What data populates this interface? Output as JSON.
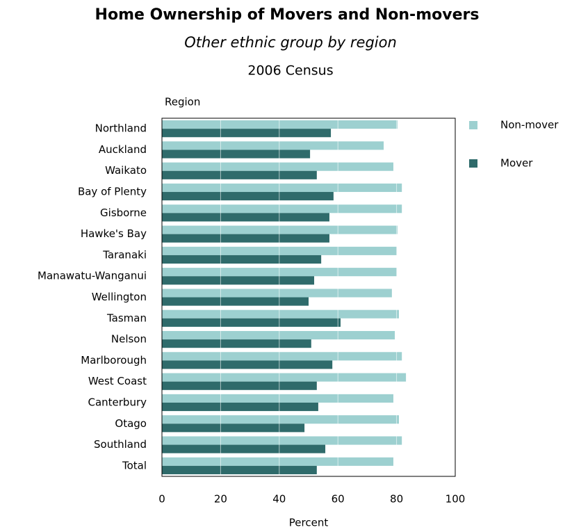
{
  "chart_data": {
    "type": "bar",
    "orientation": "horizontal",
    "title": "Home Ownership of Movers and Non-movers",
    "subtitle": "Other ethnic group by region",
    "note": "2006 Census",
    "y_label": "Region",
    "x_label": "Percent",
    "categories": [
      "Northland",
      "Auckland",
      "Waikato",
      "Bay of Plenty",
      "Gisborne",
      "Hawke's Bay",
      "Taranaki",
      "Manawatu-Wanganui",
      "Wellington",
      "Tasman",
      "Nelson",
      "Marlborough",
      "West Coast",
      "Canterbury",
      "Otago",
      "Southland",
      "Total"
    ],
    "series": [
      {
        "name": "Non-mover",
        "color": "#9dd0d0",
        "values": [
          80.3,
          75.6,
          78.9,
          81.8,
          81.8,
          80.3,
          80.1,
          80.1,
          78.4,
          80.8,
          79.4,
          81.8,
          83.2,
          78.9,
          80.8,
          81.8,
          78.9
        ]
      },
      {
        "name": "Mover",
        "color": "#2f6b6b",
        "values": [
          57.6,
          50.5,
          52.8,
          58.5,
          57.1,
          57.1,
          54.3,
          51.9,
          50.0,
          60.9,
          50.9,
          58.1,
          52.8,
          53.3,
          48.6,
          55.7,
          52.8
        ]
      }
    ],
    "xlim": [
      0,
      100
    ],
    "xticks": [
      0,
      20,
      40,
      60,
      80,
      100
    ],
    "grid": true,
    "legend": "right"
  }
}
